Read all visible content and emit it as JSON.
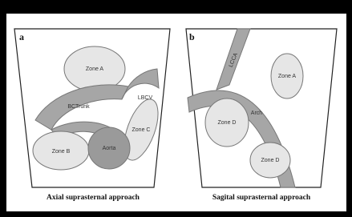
{
  "panels": [
    {
      "label": "a",
      "caption": "Axial suprasternal approach",
      "structures": [
        "Zone A",
        "BCTrunk",
        "LBCV",
        "Zone C",
        "Zone B",
        "Aorta"
      ]
    },
    {
      "label": "b",
      "caption": "Sagital suprasternal approach",
      "structures": [
        "LCCA",
        "Zone A",
        "Arch",
        "Zone D",
        "Zone D"
      ]
    }
  ]
}
